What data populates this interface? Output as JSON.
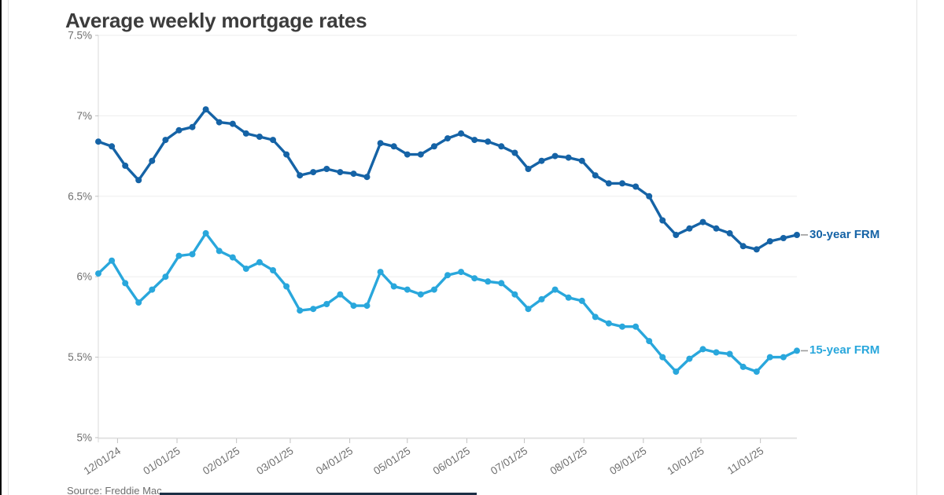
{
  "chart_data": {
    "type": "line",
    "title": "Average weekly mortgage rates",
    "source": "Source: Freddie Mac",
    "x_unit": "weekly observations, late Nov 2024 through mid Nov 2025",
    "grid": "horizontal gridlines only",
    "legend_position": "labels at right end of each line",
    "ylim": [
      5.0,
      7.5
    ],
    "y_ticks": [
      {
        "label": "7.5%",
        "value": 7.5
      },
      {
        "label": "7%",
        "value": 7.0
      },
      {
        "label": "6.5%",
        "value": 6.5
      },
      {
        "label": "6%",
        "value": 6.0
      },
      {
        "label": "5.5%",
        "value": 5.5
      },
      {
        "label": "5%",
        "value": 5.0
      }
    ],
    "x_ticks": [
      {
        "label": "12/01/24",
        "week": 1.4286
      },
      {
        "label": "01/01/25",
        "week": 5.8571
      },
      {
        "label": "02/01/25",
        "week": 10.2857
      },
      {
        "label": "03/01/25",
        "week": 14.2857
      },
      {
        "label": "04/01/25",
        "week": 18.7143
      },
      {
        "label": "05/01/25",
        "week": 23.0
      },
      {
        "label": "06/01/25",
        "week": 27.4286
      },
      {
        "label": "07/01/25",
        "week": 31.7143
      },
      {
        "label": "08/01/25",
        "week": 36.1429
      },
      {
        "label": "09/01/25",
        "week": 40.5714
      },
      {
        "label": "10/01/25",
        "week": 44.8571
      },
      {
        "label": "11/01/25",
        "week": 49.2857
      }
    ],
    "series": [
      {
        "name": "30-year FRM",
        "color": "#1563a6",
        "values": [
          6.84,
          6.81,
          6.69,
          6.6,
          6.72,
          6.85,
          6.91,
          6.93,
          7.04,
          6.96,
          6.95,
          6.89,
          6.87,
          6.85,
          6.76,
          6.63,
          6.65,
          6.67,
          6.65,
          6.64,
          6.62,
          6.83,
          6.81,
          6.76,
          6.76,
          6.81,
          6.86,
          6.89,
          6.85,
          6.84,
          6.81,
          6.77,
          6.67,
          6.72,
          6.75,
          6.74,
          6.72,
          6.63,
          6.58,
          6.58,
          6.56,
          6.5,
          6.35,
          6.26,
          6.3,
          6.34,
          6.3,
          6.27,
          6.19,
          6.17,
          6.22,
          6.24,
          6.26
        ]
      },
      {
        "name": "15-year FRM",
        "color": "#29a7dc",
        "values": [
          6.02,
          6.1,
          5.96,
          5.84,
          5.92,
          6.0,
          6.13,
          6.14,
          6.27,
          6.16,
          6.12,
          6.05,
          6.09,
          6.04,
          5.94,
          5.79,
          5.8,
          5.83,
          5.89,
          5.82,
          5.82,
          6.03,
          5.94,
          5.92,
          5.89,
          5.92,
          6.01,
          6.03,
          5.99,
          5.97,
          5.96,
          5.89,
          5.8,
          5.86,
          5.92,
          5.87,
          5.85,
          5.75,
          5.71,
          5.69,
          5.69,
          5.6,
          5.5,
          5.41,
          5.49,
          5.55,
          5.53,
          5.52,
          5.44,
          5.41,
          5.5,
          5.5,
          5.54
        ]
      }
    ],
    "colors": {
      "title_text": "#3c3c3c",
      "axis_label_text": "#6f6f6f",
      "gridline": "#ededed",
      "axis_line": "#d8d8d8",
      "tick_mark": "#c2c2c2",
      "leader_dash": "#9b9b9b",
      "bottom_bar": "#1b2f45"
    }
  }
}
